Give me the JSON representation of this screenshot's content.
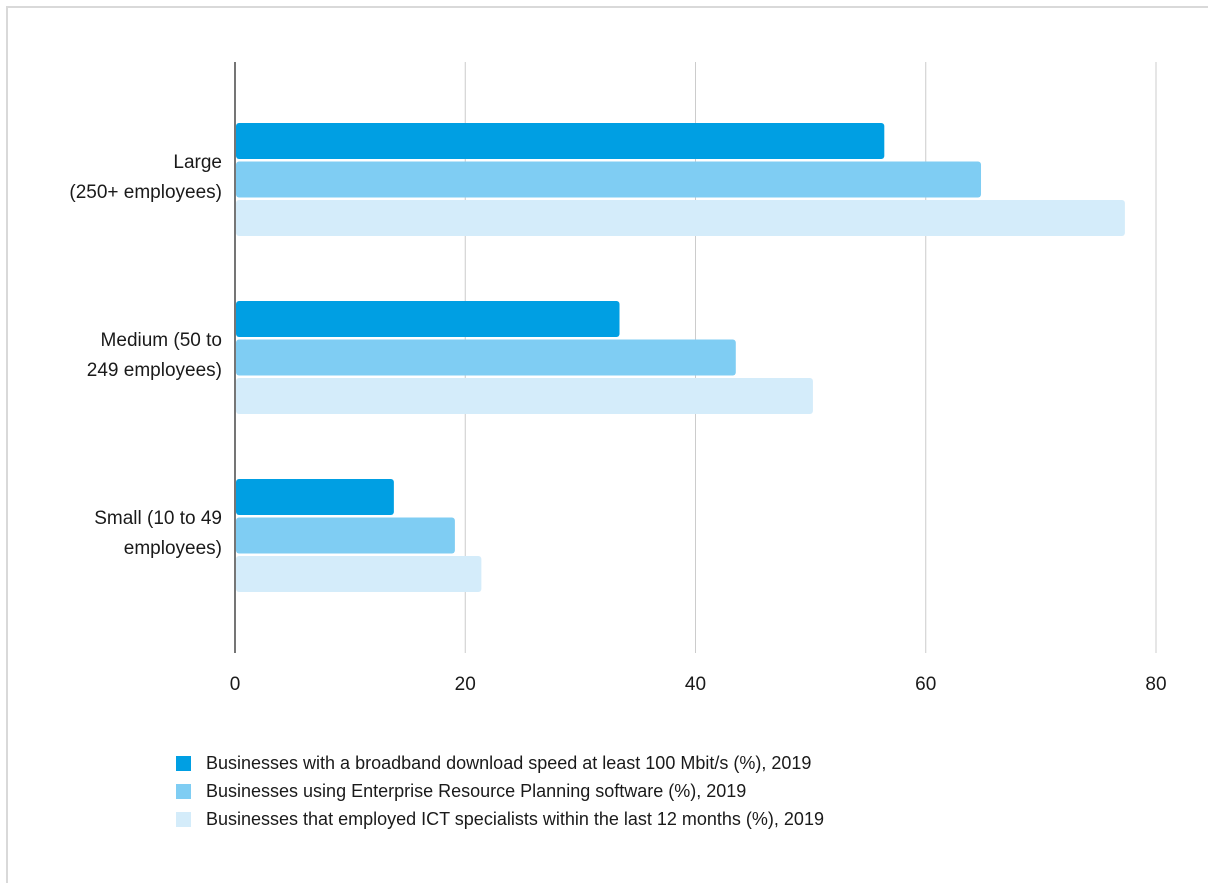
{
  "chart_data": {
    "type": "bar",
    "orientation": "horizontal",
    "categories": [
      "Large\n(250+ employees)",
      "Medium (50 to\n249 employees)",
      "Small (10 to 49\nemployees)"
    ],
    "series": [
      {
        "name": "Businesses with a broadband download speed at least 100 Mbit/s (%), 2019",
        "color": "#009fe3",
        "values": [
          56.4,
          33.4,
          13.8
        ]
      },
      {
        "name": "Businesses using Enterprise Resource Planning software (%), 2019",
        "color": "#7fcdf3",
        "values": [
          64.8,
          43.5,
          19.1
        ]
      },
      {
        "name": "Businesses that employed ICT specialists within the last 12 months (%), 2019",
        "color": "#d4ecfa",
        "values": [
          77.3,
          50.2,
          21.4
        ]
      }
    ],
    "xticks": [
      "0",
      "20",
      "40",
      "60",
      "80"
    ],
    "xlim": [
      0,
      80
    ],
    "grid": true,
    "legend_position": "bottom"
  }
}
